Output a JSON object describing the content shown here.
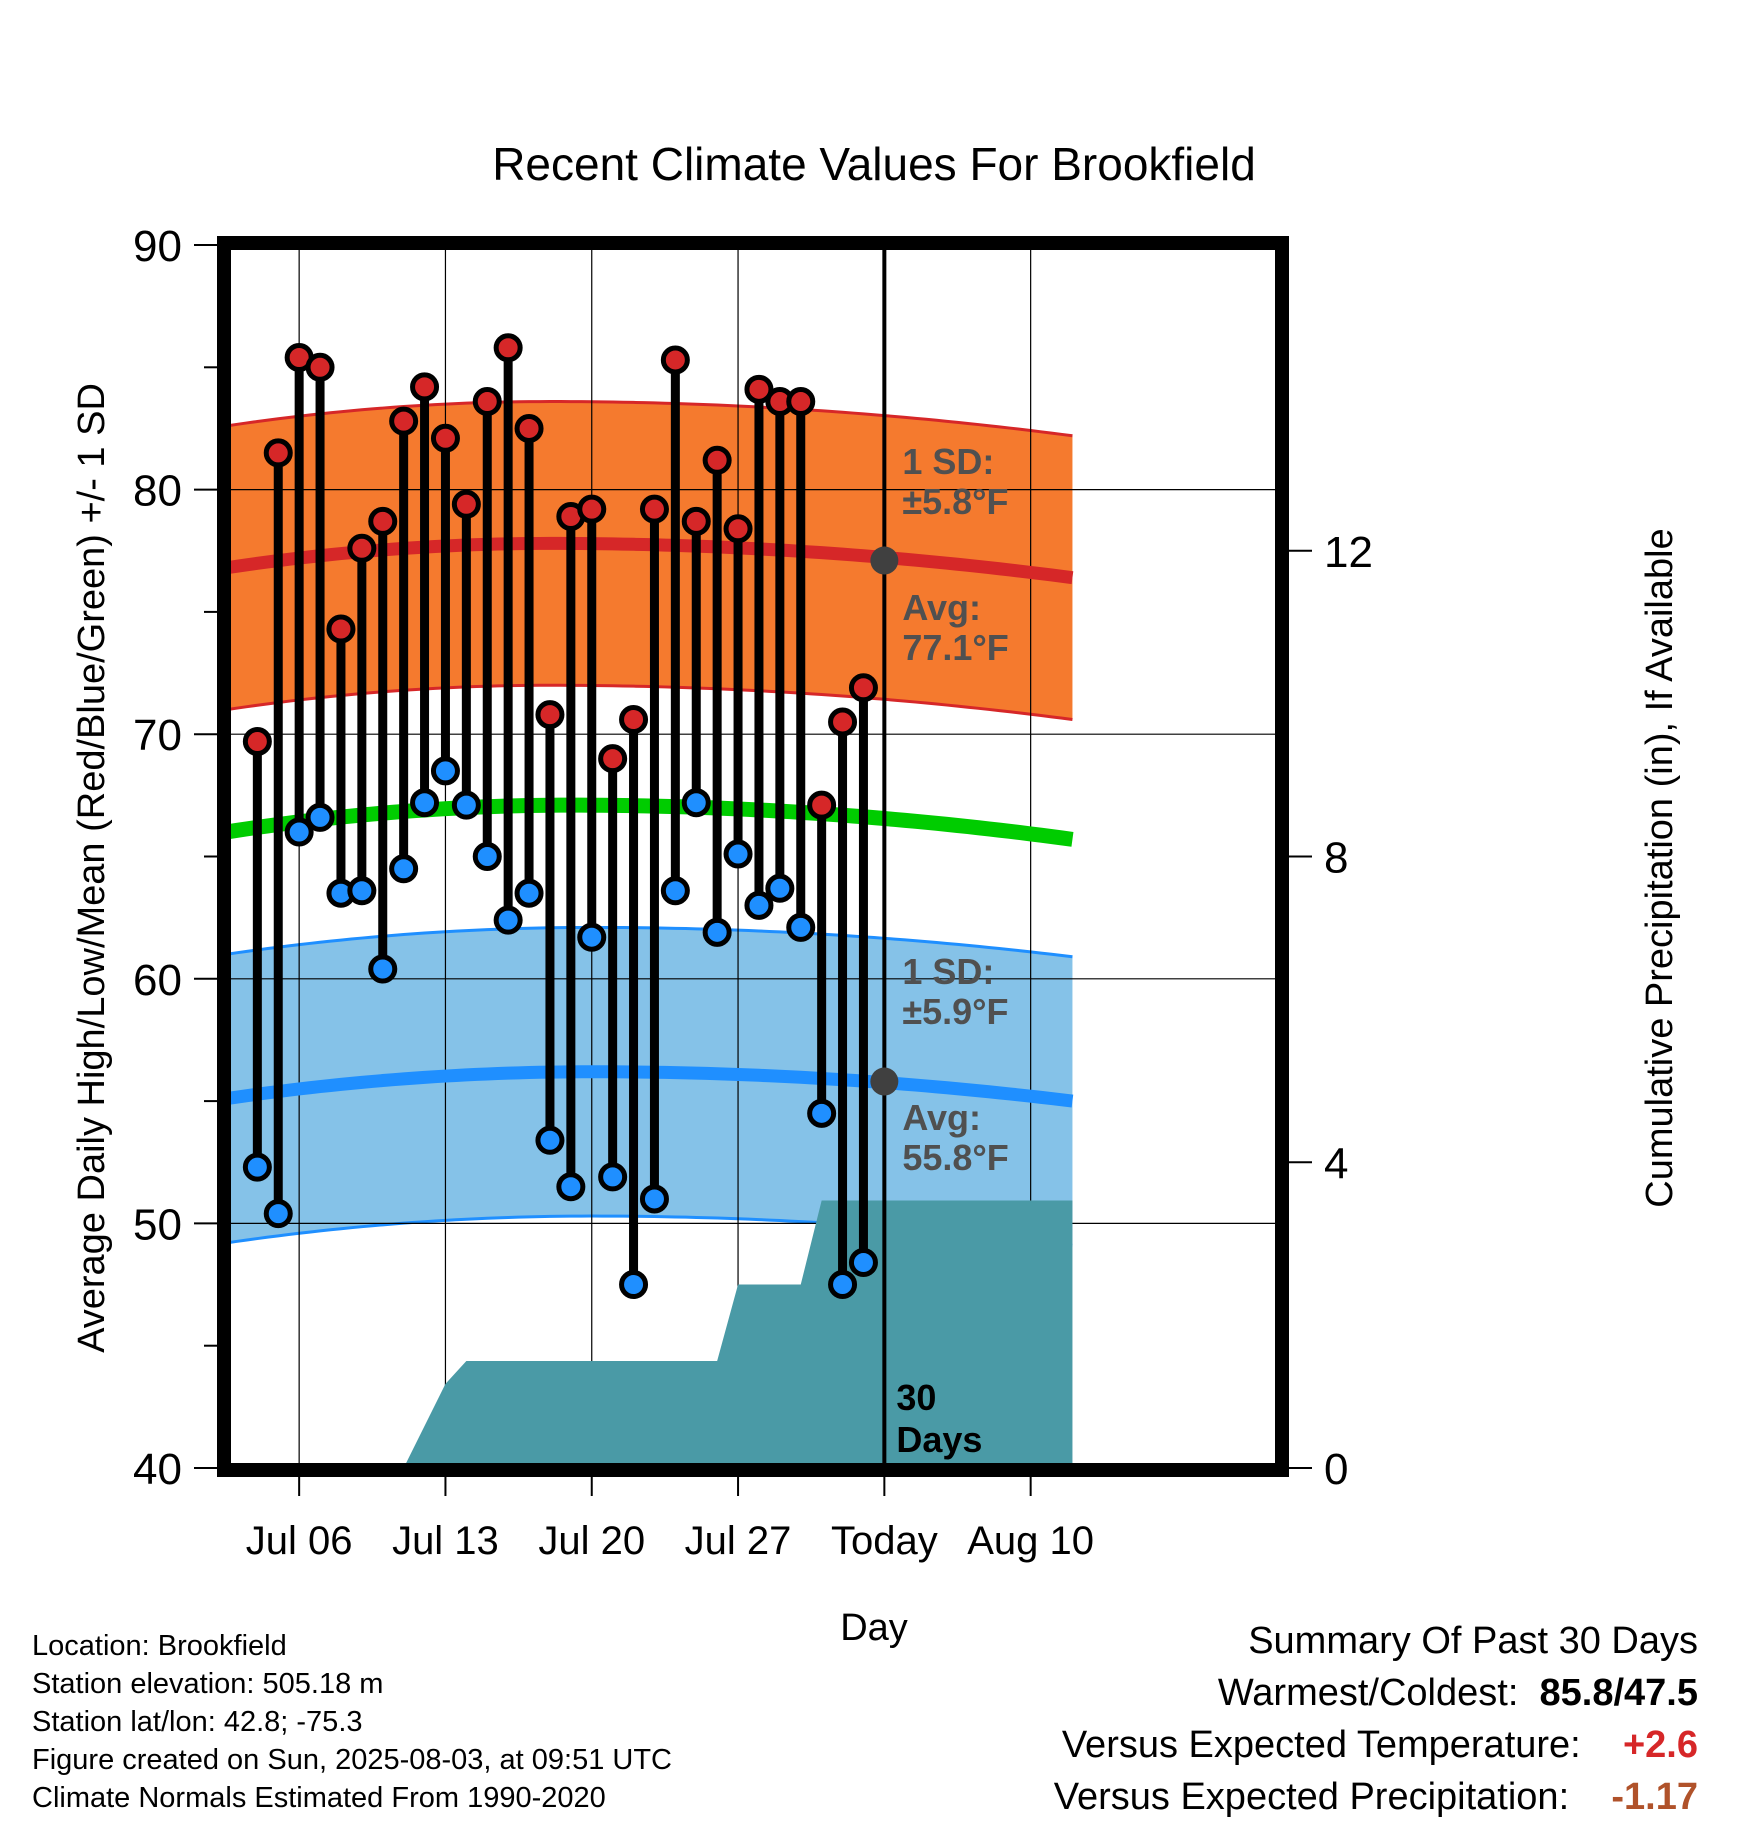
{
  "chart_data": {
    "type": "line",
    "title": "Recent Climate Values For Brookfield",
    "xlabel": "Day",
    "ylabel": "Average Daily High/Low/Mean (Red/Blue/Green) +/- 1 SD",
    "y2label": "Cumulative Precipitation (in), If Available",
    "ylim": [
      40,
      90
    ],
    "y2lim": [
      0,
      16
    ],
    "yticks": [
      "40",
      "50",
      "60",
      "70",
      "80",
      "90"
    ],
    "y2ticks": [
      "0",
      "4",
      "8",
      "12"
    ],
    "x_start": "Jul 03",
    "x_end": "Aug 12",
    "xticks": [
      "Jul 06",
      "Jul 13",
      "Jul 20",
      "Jul 27",
      "Today",
      "Aug 10"
    ],
    "xtick_days": [
      3,
      10,
      17,
      24,
      31,
      38
    ],
    "today_day": 31,
    "grid": true,
    "highs": [
      69.7,
      81.5,
      85.4,
      85.0,
      74.3,
      77.6,
      78.7,
      82.8,
      84.2,
      82.1,
      79.4,
      83.6,
      85.8,
      82.5,
      70.8,
      78.9,
      79.2,
      69.0,
      70.6,
      79.2,
      85.3,
      78.7,
      81.2,
      78.4,
      84.1,
      83.6,
      83.6,
      67.1,
      70.5,
      71.9
    ],
    "lows": [
      52.3,
      50.4,
      66.0,
      66.6,
      63.5,
      63.6,
      60.4,
      64.5,
      67.2,
      68.5,
      67.1,
      65.0,
      62.4,
      63.5,
      53.4,
      51.5,
      61.7,
      51.9,
      47.5,
      51.0,
      63.6,
      67.2,
      61.9,
      65.1,
      63.0,
      63.7,
      62.1,
      54.5,
      47.5,
      48.4
    ],
    "normal_high": {
      "start": 76.8,
      "peak": 77.8,
      "peak_day": 15,
      "end": 76.4,
      "today": 77.1,
      "sd": 5.8
    },
    "normal_low": {
      "start": 55.1,
      "peak": 56.2,
      "peak_day": 17,
      "end": 55.0,
      "today": 55.8,
      "sd": 5.9
    },
    "normal_mean": {
      "start": 66.0,
      "peak": 67.1,
      "peak_day": 16,
      "end": 65.7
    },
    "precip_cum": [
      {
        "day": 0,
        "value": 0
      },
      {
        "day": 8,
        "value": 0
      },
      {
        "day": 10,
        "value": 1.1
      },
      {
        "day": 11,
        "value": 1.4
      },
      {
        "day": 23,
        "value": 1.4
      },
      {
        "day": 24,
        "value": 2.4
      },
      {
        "day": 27,
        "value": 2.4
      },
      {
        "day": 28,
        "value": 3.5
      },
      {
        "day": 40,
        "value": 3.5
      }
    ],
    "annotations": {
      "high_sd_label": "1 SD:",
      "high_sd_value": "±5.8°F",
      "high_avg_label": "Avg:",
      "high_avg_value": "77.1°F",
      "low_sd_label": "1 SD:",
      "low_sd_value": "±5.9°F",
      "low_avg_label": "Avg:",
      "low_avg_value": "55.8°F",
      "days_line1": "30",
      "days_line2": "Days"
    },
    "colors": {
      "high_band": "#f57a2e",
      "high_line": "#d62728",
      "low_band": "#85c2e8",
      "low_line": "#1f8fff",
      "mean_line": "#00cc00",
      "precip": "#4a9aa6",
      "high_dot": "#d62728",
      "low_dot": "#1f8fff",
      "annot": "#505050",
      "frame": "#000000"
    }
  },
  "info": {
    "location": "Location: Brookfield",
    "elevation": "Station elevation: 505.18 m",
    "latlon": "Station lat/lon: 42.8; -75.3",
    "created": "Figure created on Sun, 2025-08-03, at 09:51 UTC",
    "normals": "Climate Normals Estimated From 1990-2020"
  },
  "summary": {
    "heading": "Summary Of Past 30 Days",
    "warm_cold_label": "Warmest/Coldest:",
    "warm_cold_value": "85.8/47.5",
    "temp_label": "Versus Expected Temperature:",
    "temp_value": "+2.6",
    "temp_color": "#d62728",
    "precip_label": "Versus Expected Precipitation:",
    "precip_value": "-1.17",
    "precip_color": "#b0522a"
  }
}
